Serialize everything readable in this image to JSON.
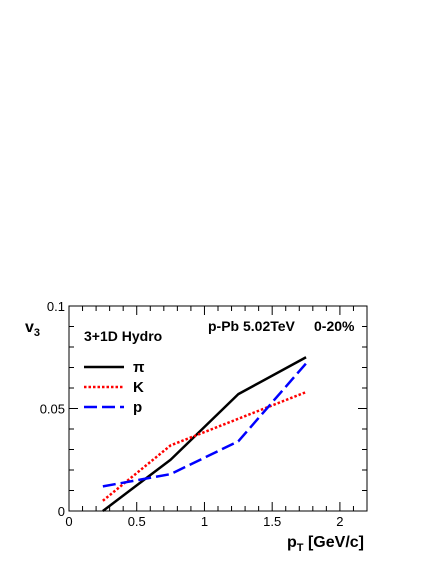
{
  "chart_data": {
    "type": "line",
    "xlabel": {
      "main": "p",
      "sub": "T",
      "rest": " [GeV/c]"
    },
    "ylabel": {
      "main": "v",
      "sub": "3"
    },
    "xlim": [
      0,
      2.2
    ],
    "ylim": [
      0,
      0.1
    ],
    "x_ticks": [
      "0",
      "0.5",
      "1",
      "1.5",
      "2"
    ],
    "x_tick_values": [
      0,
      0.5,
      1,
      1.5,
      2
    ],
    "y_ticks": [
      "0",
      "0.05",
      "0.1"
    ],
    "y_tick_values": [
      0,
      0.05,
      0.1
    ],
    "grid": false,
    "legend_position": "top-left",
    "annotations": {
      "model": "3+1D Hydro",
      "system": "p-Pb 5.02TeV",
      "centrality": "0-20%"
    },
    "series": [
      {
        "name": "π",
        "color": "#000000",
        "style": "solid",
        "x": [
          0.25,
          0.75,
          1.25,
          1.75
        ],
        "y": [
          0.0,
          0.025,
          0.057,
          0.075
        ]
      },
      {
        "name": "K",
        "color": "#ff0000",
        "style": "dotted",
        "x": [
          0.25,
          0.75,
          1.25,
          1.75
        ],
        "y": [
          0.005,
          0.032,
          0.045,
          0.058
        ]
      },
      {
        "name": "p",
        "color": "#0000ff",
        "style": "dashed",
        "x": [
          0.25,
          0.75,
          1.25,
          1.75
        ],
        "y": [
          0.012,
          0.018,
          0.034,
          0.072
        ]
      }
    ]
  }
}
